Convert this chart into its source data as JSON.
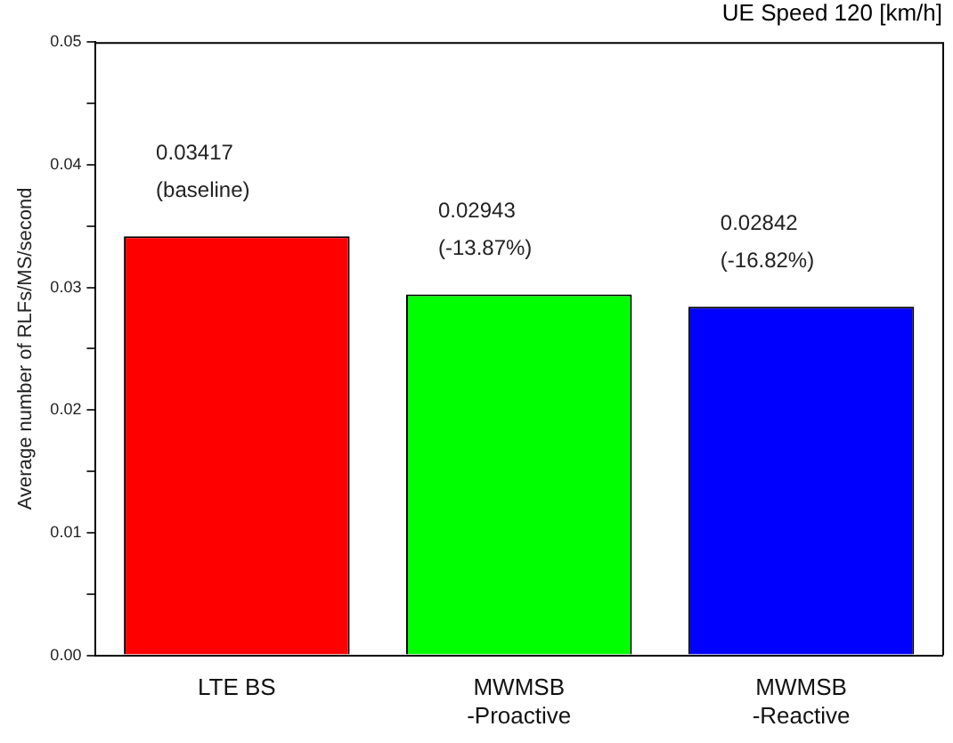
{
  "chart_data": {
    "type": "bar",
    "title": "UE Speed 120 [km/h]",
    "ylabel": "Average number of RLFs/MS/second",
    "categories": [
      "LTE BS",
      "MWMSB\n-Proactive",
      "MWMSB\n-Reactive"
    ],
    "values": [
      0.03417,
      0.02943,
      0.02842
    ],
    "colors": [
      "#ff0000",
      "#00ff00",
      "#0000ff"
    ],
    "value_labels": [
      "0.03417\n(baseline)",
      "0.02943\n(-13.87%)",
      "0.02842\n(-16.82%)"
    ],
    "ylim": [
      0,
      0.05
    ],
    "yticks": [
      {
        "value": 0,
        "label": "0.00"
      },
      {
        "value": 0.005,
        "label": null
      },
      {
        "value": 0.01,
        "label": "0.01"
      },
      {
        "value": 0.015,
        "label": null
      },
      {
        "value": 0.02,
        "label": "0.02"
      },
      {
        "value": 0.025,
        "label": null
      },
      {
        "value": 0.03,
        "label": "0.03"
      },
      {
        "value": 0.035,
        "label": null
      },
      {
        "value": 0.04,
        "label": "0.04"
      },
      {
        "value": 0.045,
        "label": null
      },
      {
        "value": 0.05,
        "label": "0.05"
      }
    ],
    "grid": false,
    "legend": false
  }
}
